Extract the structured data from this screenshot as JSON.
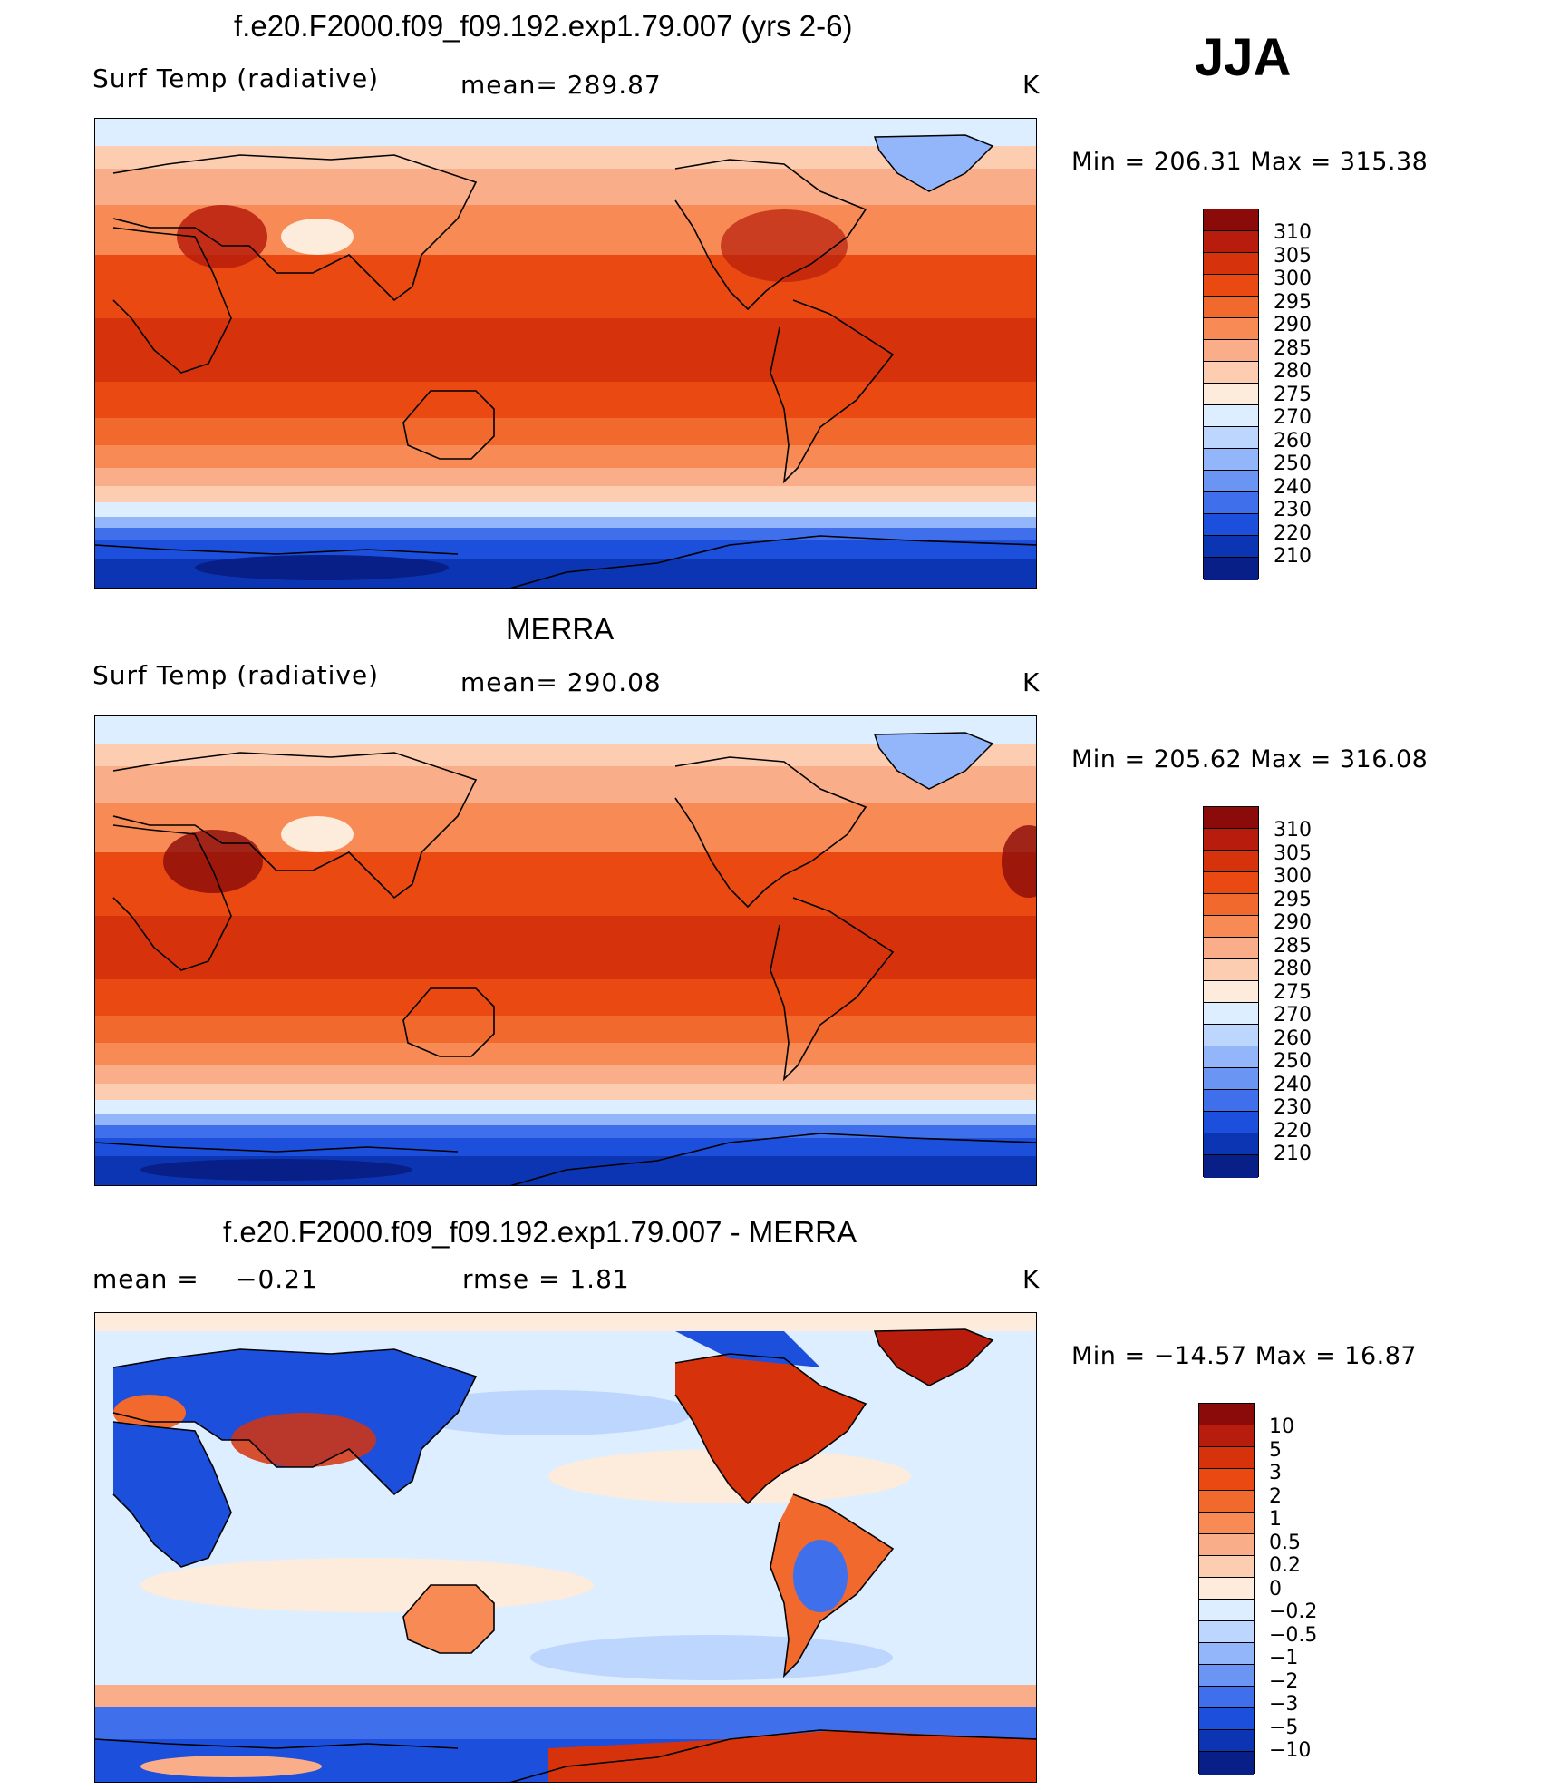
{
  "season": "JJA",
  "units": "K",
  "panels": [
    {
      "title": "f.e20.F2000.f09_f09.192.exp1.79.007 (yrs 2-6)",
      "variable": "Surf Temp (radiative)",
      "stat1": "mean=  289.87",
      "stat2": "",
      "minmax": "Min  =  206.31  Max  =  315.38",
      "type": "field"
    },
    {
      "title": "MERRA",
      "variable": "Surf Temp (radiative)",
      "stat1": "mean=  290.08",
      "stat2": "",
      "minmax": "Min  =  205.62  Max  =  316.08",
      "type": "field"
    },
    {
      "title": "f.e20.F2000.f09_f09.192.exp1.79.007 - MERRA",
      "variable": "mean  =",
      "stat1": "−0.21",
      "stat2": "rmse  =     1.81",
      "minmax": "Min  =  −14.57  Max  =    16.87",
      "type": "diff"
    }
  ],
  "colorbar_field": {
    "labels": [
      "310",
      "305",
      "300",
      "295",
      "290",
      "285",
      "280",
      "275",
      "270",
      "260",
      "250",
      "240",
      "230",
      "220",
      "210"
    ],
    "colors": [
      "#8b0a0a",
      "#b71c0c",
      "#d6330d",
      "#ea4a12",
      "#f2692e",
      "#f78a55",
      "#f9ad88",
      "#fccdb0",
      "#fdebdc",
      "#dceeff",
      "#bcd6fd",
      "#93b6fa",
      "#6a95f3",
      "#3f6feb",
      "#1c4fdc",
      "#0c35b4",
      "#071f86"
    ]
  },
  "colorbar_diff": {
    "labels": [
      "10",
      "5",
      "3",
      "2",
      "1",
      "0.5",
      "0.2",
      "0",
      "−0.2",
      "−0.5",
      "−1",
      "−2",
      "−3",
      "−5",
      "−10"
    ],
    "colors": [
      "#8b0a0a",
      "#b71c0c",
      "#d6330d",
      "#ea4a12",
      "#f2692e",
      "#f78a55",
      "#f9ad88",
      "#fccdb0",
      "#fdebdc",
      "#dceeff",
      "#bcd6fd",
      "#93b6fa",
      "#6a95f3",
      "#3f6feb",
      "#1c4fdc",
      "#0c35b4",
      "#071f86"
    ]
  }
}
